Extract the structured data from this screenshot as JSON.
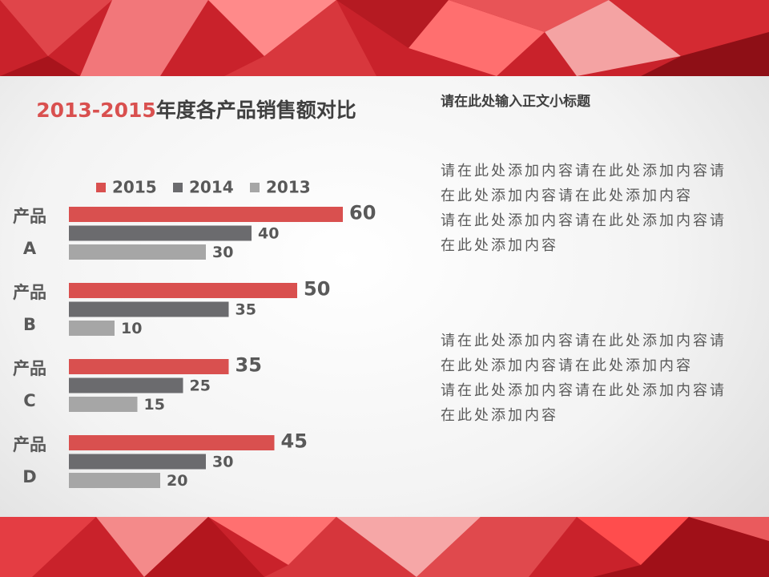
{
  "chart_data": {
    "type": "bar",
    "orientation": "horizontal",
    "title": "2013-2015年度各产品销售额对比",
    "categories": [
      "产品A",
      "产品B",
      "产品C",
      "产品D"
    ],
    "series": [
      {
        "name": "2015",
        "color": "#d9504f",
        "values": [
          60,
          50,
          35,
          45
        ]
      },
      {
        "name": "2014",
        "color": "#6b6b6e",
        "values": [
          40,
          35,
          25,
          30
        ]
      },
      {
        "name": "2013",
        "color": "#a6a6a6",
        "values": [
          30,
          10,
          15,
          20
        ]
      }
    ],
    "xlim": [
      0,
      60
    ],
    "legend": "top"
  },
  "text_panel": {
    "subtitle": "请在此处输入正文小标题",
    "paragraphs": [
      "请在此处添加内容请在此处添加内容请在此处添加内容请在此处添加内容",
      "请在此处添加内容请在此处添加内容请在此处添加内容",
      "请在此处添加内容请在此处添加内容请在此处添加内容请在此处添加内容",
      "请在此处添加内容请在此处添加内容请在此处添加内容"
    ]
  }
}
